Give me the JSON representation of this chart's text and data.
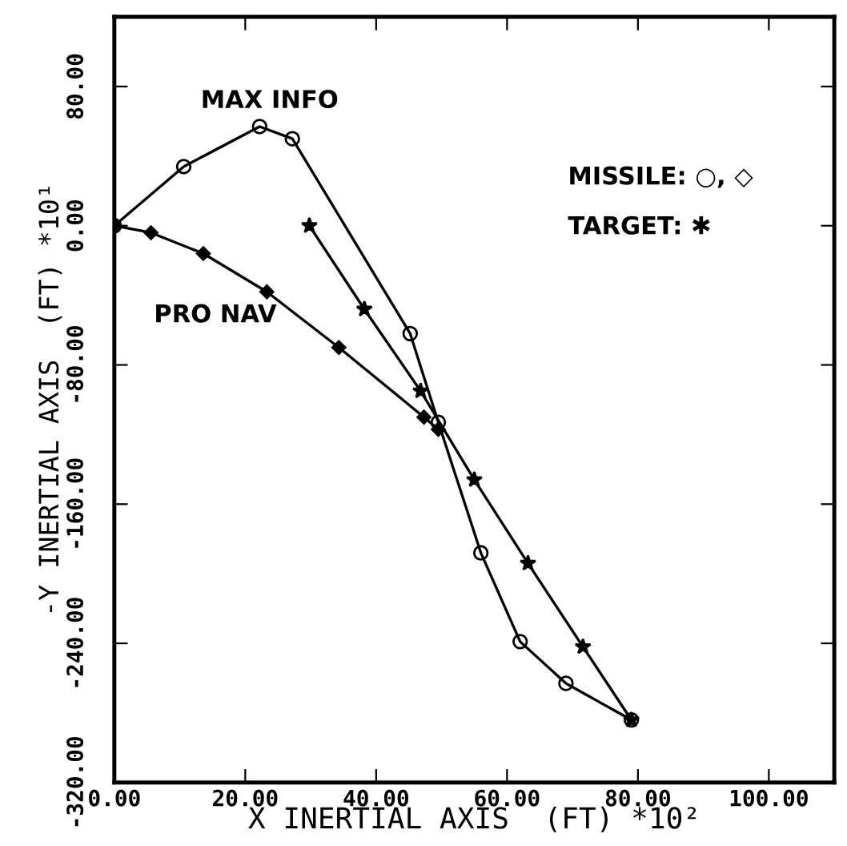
{
  "chart_data": {
    "type": "line",
    "xlabel": "X INERTIAL AXIS  (FT) *10²",
    "ylabel": "-Y INERTIAL AXIS  (FT) *10¹",
    "xlim": [
      0,
      110
    ],
    "ylim": [
      -320,
      120
    ],
    "xticks": [
      {
        "value": 0,
        "label": "0.00"
      },
      {
        "value": 20,
        "label": "20.00"
      },
      {
        "value": 40,
        "label": "40.00"
      },
      {
        "value": 60,
        "label": "60.00"
      },
      {
        "value": 80,
        "label": "80.00"
      },
      {
        "value": 100,
        "label": "100.00"
      }
    ],
    "yticks": [
      {
        "value": -320,
        "label": "-320.00"
      },
      {
        "value": -240,
        "label": "-240.00"
      },
      {
        "value": -160,
        "label": "-160.00"
      },
      {
        "value": -80,
        "label": "-80.00"
      },
      {
        "value": 0,
        "label": "0.00"
      },
      {
        "value": 80,
        "label": "80.00"
      }
    ],
    "grid": false,
    "line_style": "solid",
    "series": [
      {
        "color": "#000000",
        "marker": "circle",
        "x": [
          0,
          10.6,
          22.2,
          27.2,
          45.2,
          49.5,
          56.0,
          62.0,
          69.0,
          79.0
        ],
        "values": [
          0,
          34,
          57,
          50,
          -62,
          -113,
          -188,
          -239,
          -263,
          -284
        ]
      },
      {
        "color": "#000000",
        "marker": "diamond",
        "x": [
          0,
          5.6,
          13.6,
          23.3,
          34.3,
          47.3,
          49.5
        ],
        "values": [
          0,
          -4,
          -16,
          -38,
          -70,
          -110,
          -117
        ]
      },
      {
        "color": "#000000",
        "marker": "star",
        "x": [
          29.8,
          38.2,
          46.8,
          55.0,
          63.2,
          71.6,
          79.0
        ],
        "values": [
          0,
          -48,
          -95,
          -146,
          -194,
          -242,
          -284
        ]
      }
    ],
    "annotations": [
      "MAX INFO",
      "PRO NAV",
      "MISSILE: ○, ◇",
      "TARGET: ✱"
    ]
  }
}
